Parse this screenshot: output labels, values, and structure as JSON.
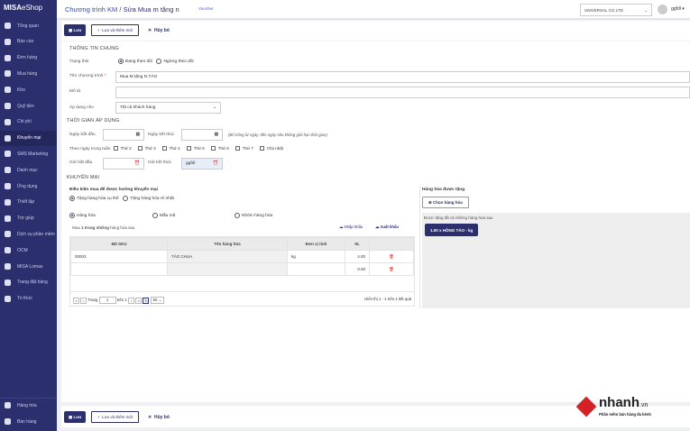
{
  "app": {
    "logo_bold": "MISA",
    "logo_rest": "eShop"
  },
  "sidebar": {
    "items": [
      {
        "label": "Tổng quan",
        "icon": "dashboard-icon"
      },
      {
        "label": "Báo cáo",
        "icon": "chart-pie-icon"
      },
      {
        "label": "Đơn hàng",
        "icon": "order-icon"
      },
      {
        "label": "Mua hàng",
        "icon": "cart-icon"
      },
      {
        "label": "Kho",
        "icon": "warehouse-icon"
      },
      {
        "label": "Quỹ tiền",
        "icon": "cash-icon"
      },
      {
        "label": "Chi phí",
        "icon": "expense-icon"
      },
      {
        "label": "Khuyến mại",
        "icon": "gift-icon",
        "active": true
      },
      {
        "label": "SMS Marketing",
        "icon": "phone-icon"
      },
      {
        "label": "Danh mục",
        "icon": "list-icon"
      },
      {
        "label": "Ứng dụng",
        "icon": "apps-icon"
      },
      {
        "label": "Thiết lập",
        "icon": "gear-icon"
      },
      {
        "label": "Trợ giúp",
        "icon": "help-icon"
      },
      {
        "label": "Dịch vụ phần mềm",
        "icon": "user-icon"
      },
      {
        "label": "OCM",
        "icon": "ocm-icon"
      },
      {
        "label": "MISA Lomas",
        "icon": "lomas-icon"
      },
      {
        "label": "Trang đặt hàng",
        "icon": "shop-icon"
      },
      {
        "label": "Tri thức",
        "icon": "graduation-icon"
      }
    ],
    "bottom": [
      {
        "label": "Hàng hóa",
        "icon": "goods-icon"
      },
      {
        "label": "Bán hàng",
        "icon": "sell-icon"
      }
    ]
  },
  "header": {
    "breadcrumb_parent": "Chương trình KM",
    "breadcrumb_current": "Sửa Mua m tặng n",
    "voucher": "Voucher",
    "company": "UNIVERSAL CO.LTD",
    "user": "ggfdl"
  },
  "toolbar": {
    "save": "Lưu",
    "save_new": "Lưu và thêm mới",
    "cancel": "Hủy bỏ"
  },
  "general": {
    "title": "THÔNG TIN CHUNG",
    "status_label": "Trạng thái",
    "status_options": [
      "Đang theo dõi",
      "Ngừng theo dõi"
    ],
    "status_selected": 0,
    "name_label": "Tên chương trình",
    "name_required": "*",
    "name_value": "Mua M tặng N TÁO",
    "desc_label": "Mô tả",
    "desc_value": "",
    "apply_label": "Áp dụng cho",
    "apply_value": "Tất cả khách hàng"
  },
  "time": {
    "title": "THỜI GIAN ÁP DỤNG",
    "start_date": "Ngày bắt đầu",
    "end_date": "Ngày kết thúc",
    "hint": "(Bỏ trống từ ngày, đến ngày nếu không giới hạn thời gian)",
    "weekday_label": "Theo ngày trong tuần",
    "weekdays": [
      "Thứ 2",
      "Thứ 3",
      "Thứ 4",
      "Thứ 5",
      "Thứ 6",
      "Thứ 7",
      "Chủ nhật"
    ],
    "start_time": "Giờ bắt đầu",
    "end_time": "Giờ kết thúc",
    "end_time_value": "ggfdl"
  },
  "promo": {
    "title": "KHUYẾN MẠI",
    "condition": "Điều kiện mua để được hưởng khuyến mại",
    "gift_options": [
      "Tặng hàng hóa cụ thể",
      "Tặng hàng hóa rẻ nhất"
    ],
    "type_options": [
      "Hàng hóa",
      "Mẫu mã",
      "Nhóm hàng hóa"
    ],
    "buy_prefix": "Mua",
    "buy_qty": "1",
    "buy_mid": "trong những",
    "buy_suffix": "hàng hóa sau",
    "import": "Nhập khẩu",
    "export": "Xuất khẩu",
    "columns": [
      "Mã SKU",
      "Tên hàng hóa",
      "Đơn vị tính",
      "SL"
    ],
    "rows": [
      {
        "sku": "00003",
        "name": "TÁO CHUA",
        "unit": "kg",
        "qty": "4.00"
      },
      {
        "sku": "",
        "name": "",
        "unit": "",
        "qty": "0.00"
      }
    ],
    "pager": {
      "page_label": "Trang",
      "page": "1",
      "of": "trên 1",
      "size": "50",
      "summary": "Hiển thị 1 - 1 trên 1 kết quả"
    }
  },
  "gift": {
    "title": "Hàng hóa được tặng",
    "choose": "Chọn hàng hóa",
    "note": "Được tặng tất cả những hàng hóa sau",
    "item": "1.00 x HỒNG TÁO - kg"
  },
  "brand": {
    "name": "nhanh",
    "tld": ".vn",
    "tagline": "Phần mềm bán hàng đa kênh"
  }
}
